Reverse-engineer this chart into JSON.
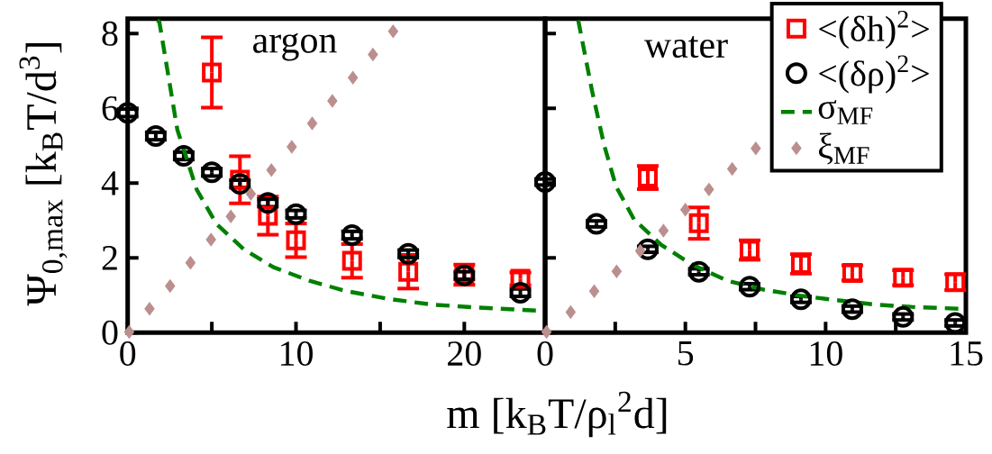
{
  "chart_data": [
    {
      "type": "scatter",
      "xlabel": "m [k$_{B}$T/ρ$_{l}$$^{2}$d]",
      "ylabel": "Ψ$_{0,max}$ [k$_{B}$T/d$^{3}$]",
      "annotations": [
        "argon"
      ],
      "xlim": [
        0,
        24.8
      ],
      "ylim": [
        0,
        8.4
      ],
      "xticks": [
        0,
        {
          "value": 5,
          "label": null
        },
        10,
        {
          "value": 15,
          "label": null
        },
        20
      ],
      "yticks": [
        0,
        2,
        4,
        6,
        8
      ],
      "series": [
        {
          "marker": "square",
          "color": "#ff0000",
          "x": [
            5.0,
            6.67,
            8.33,
            10.0,
            13.33,
            16.67,
            20.0,
            23.33
          ],
          "values": [
            6.96,
            4.09,
            3.13,
            2.47,
            1.92,
            1.63,
            1.55,
            1.44
          ],
          "errors": [
            0.94,
            0.63,
            0.51,
            0.45,
            0.45,
            0.45,
            0.27,
            0.17
          ]
        },
        {
          "marker": "circle",
          "color": "#000000",
          "x": [
            0,
            1.67,
            3.33,
            5.0,
            6.67,
            8.33,
            10.0,
            13.33,
            16.67,
            20.0,
            23.33
          ],
          "values": [
            5.88,
            5.26,
            4.73,
            4.29,
            3.98,
            3.47,
            3.17,
            2.61,
            2.11,
            1.53,
            1.07
          ],
          "errors": [
            0.1,
            0.1,
            0.1,
            0.1,
            0.1,
            0.1,
            0.1,
            0.1,
            0.1,
            0.1,
            0.1
          ]
        },
        {
          "type": "line",
          "line_style": "dashed",
          "color": "#008000",
          "x": [
            1.75,
            1.88,
            2.95,
            4.1,
            5.27,
            6.9,
            8.66,
            10.8,
            12.9,
            15.4,
            18.1,
            20.8,
            24.4
          ],
          "values": [
            8.35,
            8.32,
            5.43,
            3.83,
            2.91,
            2.23,
            1.75,
            1.39,
            1.12,
            0.91,
            0.75,
            0.67,
            0.59
          ]
        },
        {
          "marker": "diamond",
          "color": "#bc8f8f",
          "x": [
            0.09,
            1.3,
            2.52,
            3.73,
            4.95,
            6.13,
            7.32,
            8.54,
            9.75,
            10.96,
            12.16,
            13.38,
            14.57,
            15.77
          ],
          "values": [
            0.02,
            0.64,
            1.25,
            1.87,
            2.49,
            3.11,
            3.71,
            4.35,
            4.97,
            5.6,
            6.2,
            6.82,
            7.44,
            8.06
          ]
        }
      ]
    },
    {
      "type": "scatter",
      "annotations": [
        "water"
      ],
      "xlim": [
        0,
        15
      ],
      "ylim": [
        0,
        8.4
      ],
      "xticks": [
        0,
        {
          "value": 2.5,
          "label": null
        },
        5,
        {
          "value": 7.5,
          "label": null
        },
        10,
        {
          "value": 12.5,
          "label": null
        },
        15
      ],
      "yticks": [
        0,
        2,
        4,
        6,
        8
      ],
      "tick_labels": "x",
      "legend": "top right",
      "series": [
        {
          "name": "<(δh)$^{2}$>",
          "marker": "square",
          "color": "#ff0000",
          "x": [
            3.66,
            5.48,
            7.29,
            9.12,
            10.95,
            12.76,
            14.62
          ],
          "values": [
            4.15,
            2.93,
            2.21,
            1.84,
            1.6,
            1.47,
            1.35
          ],
          "errors": [
            0.31,
            0.42,
            0.26,
            0.26,
            0.2,
            0.2,
            0.21
          ]
        },
        {
          "name": "<(δρ)$^{2}$>",
          "marker": "circle",
          "color": "#000000",
          "x": [
            0,
            1.83,
            3.66,
            5.48,
            7.29,
            9.12,
            10.95,
            12.76,
            14.62
          ],
          "values": [
            4.03,
            2.91,
            2.23,
            1.63,
            1.23,
            0.89,
            0.63,
            0.42,
            0.26
          ],
          "errors": [
            0.08,
            0.08,
            0.08,
            0.08,
            0.08,
            0.08,
            0.08,
            0.08,
            0.08
          ]
        },
        {
          "name": "σ$_{MF}$",
          "type": "line",
          "line_style": "dashed",
          "color": "#008000",
          "x": [
            1.18,
            1.67,
            2.1,
            2.53,
            3.17,
            4.14,
            5.22,
            6.5,
            7.8,
            9.09,
            10.38,
            11.77,
            13.06,
            14.73
          ],
          "values": [
            8.36,
            6.48,
            5.03,
            3.91,
            3.03,
            2.35,
            1.83,
            1.39,
            1.15,
            0.99,
            0.87,
            0.75,
            0.69,
            0.64
          ]
        },
        {
          "name": "ξ$_{MF}$",
          "marker": "diamond",
          "color": "#bc8f8f",
          "x": [
            0.05,
            0.91,
            1.75,
            2.55,
            3.39,
            4.22,
            5.0,
            5.84,
            6.67,
            7.51
          ],
          "values": [
            0.02,
            0.55,
            1.11,
            1.64,
            2.19,
            2.73,
            3.29,
            3.83,
            4.38,
            4.93
          ]
        }
      ]
    }
  ]
}
